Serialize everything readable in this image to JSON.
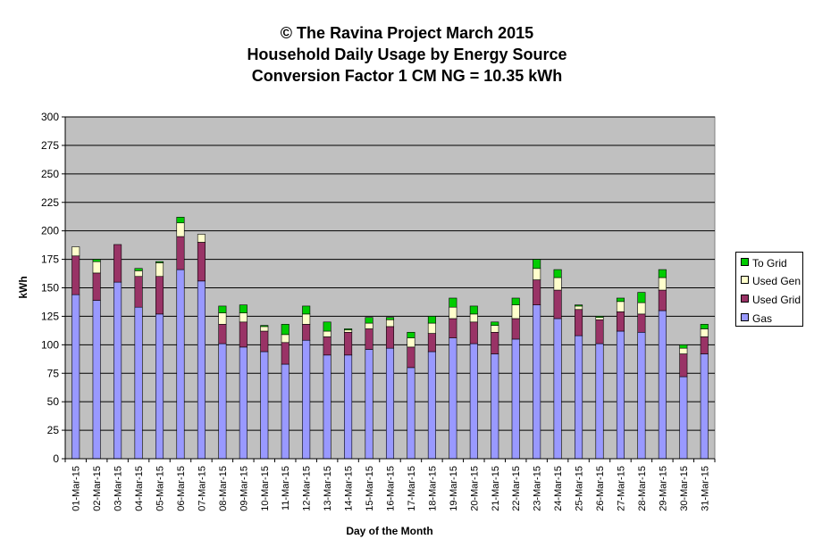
{
  "chart_data": {
    "type": "bar",
    "stacked": true,
    "title_lines": [
      "© The Ravina Project March 2015",
      "Household Daily Usage by Energy Source",
      "Conversion Factor 1 CM NG = 10.35 kWh"
    ],
    "xlabel": "Day of the Month",
    "ylabel": "kWh",
    "ylim": [
      0,
      300
    ],
    "yticks": [
      0,
      25,
      50,
      75,
      100,
      125,
      150,
      175,
      200,
      225,
      250,
      275,
      300
    ],
    "grid": true,
    "legend_position": "right",
    "categories": [
      "01-Mar-15",
      "02-Mar-15",
      "03-Mar-15",
      "04-Mar-15",
      "05-Mar-15",
      "06-Mar-15",
      "07-Mar-15",
      "08-Mar-15",
      "09-Mar-15",
      "10-Mar-15",
      "11-Mar-15",
      "12-Mar-15",
      "13-Mar-15",
      "14-Mar-15",
      "15-Mar-15",
      "16-Mar-15",
      "17-Mar-15",
      "18-Mar-15",
      "19-Mar-15",
      "20-Mar-15",
      "21-Mar-15",
      "22-Mar-15",
      "23-Mar-15",
      "24-Mar-15",
      "25-Mar-15",
      "26-Mar-15",
      "27-Mar-15",
      "28-Mar-15",
      "29-Mar-15",
      "30-Mar-15",
      "31-Mar-15"
    ],
    "series": [
      {
        "name": "Gas",
        "color": "#9999ff",
        "values": [
          144,
          139,
          155,
          133,
          127,
          166,
          156,
          101,
          98,
          94,
          83,
          104,
          91,
          91,
          96,
          97,
          80,
          94,
          106,
          101,
          92,
          105,
          135,
          123,
          108,
          101,
          112,
          111,
          130,
          72,
          92
        ]
      },
      {
        "name": "Used Grid",
        "color": "#993366",
        "values": [
          34,
          24,
          33,
          27,
          33,
          29,
          34,
          17,
          22,
          18,
          19,
          14,
          16,
          20,
          18,
          19,
          18,
          16,
          17,
          19,
          19,
          18,
          22,
          25,
          23,
          21,
          17,
          16,
          18,
          20,
          15
        ]
      },
      {
        "name": "Used Gen",
        "color": "#ffffcc",
        "values": [
          8,
          10,
          0,
          5,
          12,
          12,
          7,
          10,
          8,
          4,
          7,
          9,
          5,
          2,
          5,
          6,
          8,
          9,
          10,
          7,
          6,
          12,
          10,
          11,
          3,
          2,
          9,
          10,
          11,
          5,
          7
        ]
      },
      {
        "name": "To Grid",
        "color": "#00cc00",
        "values": [
          0,
          2,
          0,
          2,
          1,
          5,
          0,
          6,
          7,
          1,
          9,
          7,
          8,
          1,
          5,
          2,
          5,
          6,
          8,
          7,
          3,
          6,
          8,
          7,
          1,
          1,
          3,
          9,
          7,
          3,
          4
        ]
      }
    ]
  }
}
